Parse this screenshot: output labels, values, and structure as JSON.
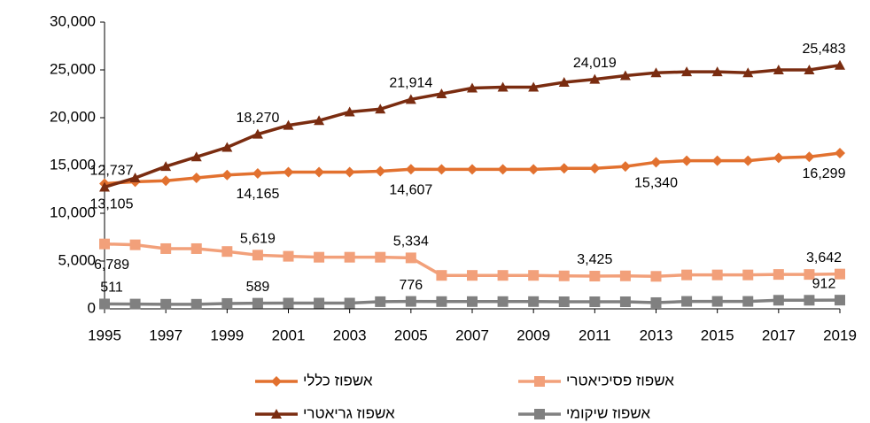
{
  "chart_data": {
    "type": "line",
    "x": [
      1995,
      1996,
      1997,
      1998,
      1999,
      2000,
      2001,
      2002,
      2003,
      2004,
      2005,
      2006,
      2007,
      2008,
      2009,
      2010,
      2011,
      2012,
      2013,
      2014,
      2015,
      2016,
      2017,
      2018,
      2019
    ],
    "xlim": [
      1995,
      2019
    ],
    "xticks": [
      1995,
      1997,
      1999,
      2001,
      2003,
      2005,
      2007,
      2009,
      2011,
      2013,
      2015,
      2017,
      2019
    ],
    "ylim": [
      0,
      30000
    ],
    "yticks": [
      0,
      {
        "value": 5000,
        "label": "5,000"
      },
      {
        "value": 10000,
        "label": "10,000"
      },
      {
        "value": 15000,
        "label": "15,000"
      },
      {
        "value": 20000,
        "label": "20,000"
      },
      {
        "value": 25000,
        "label": "25,000"
      },
      {
        "value": 30000,
        "label": "30,000"
      }
    ],
    "series": [
      {
        "name": "אשפוז כללי",
        "color": "#E2712F",
        "marker": "diamond",
        "values": [
          13105,
          13300,
          13400,
          13700,
          14000,
          14165,
          14300,
          14300,
          14300,
          14400,
          14607,
          14600,
          14600,
          14600,
          14600,
          14700,
          14700,
          14900,
          15340,
          15500,
          15500,
          15500,
          15800,
          15900,
          16299
        ],
        "value_labels": [
          "13,105",
          null,
          null,
          null,
          null,
          "14,165",
          null,
          null,
          null,
          null,
          "14,607",
          null,
          null,
          null,
          null,
          null,
          null,
          null,
          "15,340",
          null,
          null,
          null,
          null,
          null,
          "16,299"
        ]
      },
      {
        "name": "אשפוז פסיכיאטרי",
        "color": "#F2A07A",
        "marker": "square",
        "values": [
          6789,
          6700,
          6300,
          6300,
          6000,
          5619,
          5500,
          5400,
          5400,
          5400,
          5334,
          3500,
          3500,
          3500,
          3500,
          3450,
          3425,
          3450,
          3400,
          3550,
          3550,
          3550,
          3600,
          3600,
          3642
        ],
        "value_labels": [
          "6,789",
          null,
          null,
          null,
          null,
          "5,619",
          null,
          null,
          null,
          null,
          "5,334",
          null,
          null,
          null,
          null,
          null,
          "3,425",
          null,
          null,
          null,
          null,
          null,
          null,
          null,
          "3,642"
        ]
      },
      {
        "name": "אשפוז גריאטרי",
        "color": "#7A2C10",
        "marker": "triangle",
        "values": [
          12737,
          13700,
          14900,
          15900,
          16900,
          18270,
          19200,
          19700,
          20600,
          20900,
          21914,
          22500,
          23100,
          23200,
          23200,
          23700,
          24019,
          24400,
          24700,
          24800,
          24800,
          24700,
          25000,
          25000,
          25483
        ],
        "value_labels": [
          "12,737",
          null,
          null,
          null,
          null,
          "18,270",
          null,
          null,
          null,
          null,
          "21,914",
          null,
          null,
          null,
          null,
          null,
          "24,019",
          null,
          null,
          null,
          null,
          null,
          null,
          null,
          "25,483"
        ]
      },
      {
        "name": "אשפוז שיקומי",
        "color": "#808080",
        "marker": "square",
        "values": [
          511,
          500,
          480,
          480,
          560,
          589,
          600,
          600,
          600,
          750,
          776,
          760,
          760,
          760,
          760,
          740,
          740,
          740,
          650,
          780,
          780,
          780,
          900,
          900,
          912
        ],
        "value_labels": [
          "511",
          null,
          null,
          null,
          null,
          "589",
          null,
          null,
          null,
          null,
          "776",
          null,
          null,
          null,
          null,
          null,
          null,
          null,
          null,
          null,
          null,
          null,
          null,
          null,
          "912"
        ]
      }
    ]
  }
}
